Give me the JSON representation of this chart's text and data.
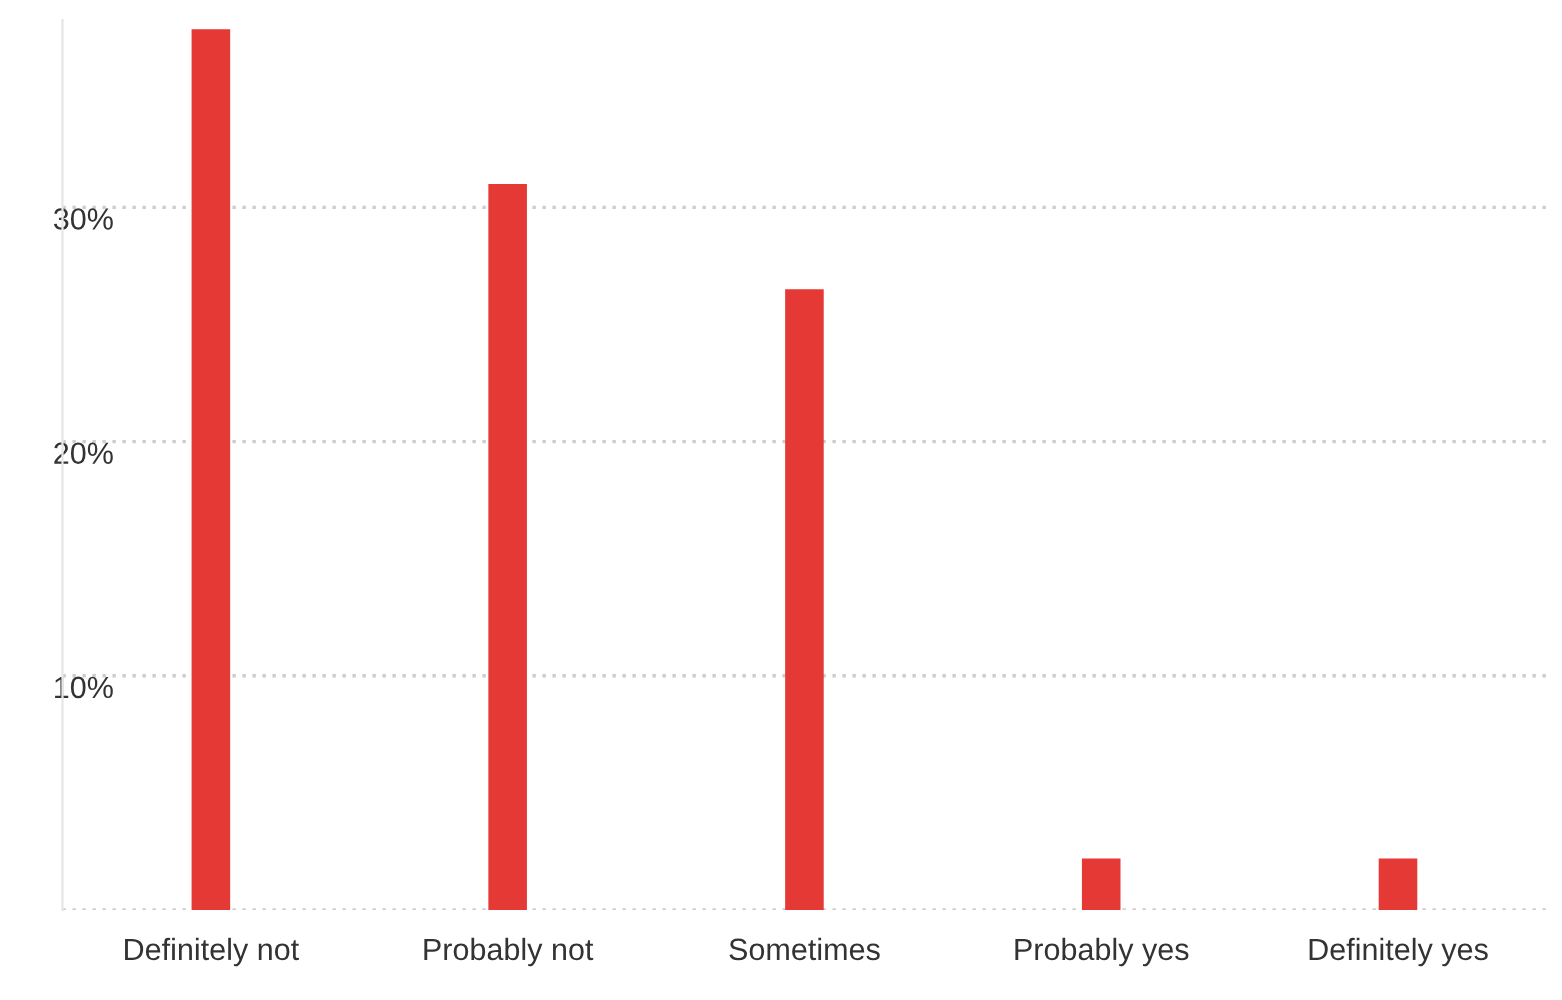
{
  "chart_data": {
    "type": "bar",
    "categories": [
      "Definitely not",
      "Probably not",
      "Sometimes",
      "Probably yes",
      "Definitely yes"
    ],
    "values": [
      37.6,
      31.0,
      26.5,
      2.2,
      2.2
    ],
    "color": "#e53935",
    "ylim": [
      0,
      38
    ],
    "yticks": [
      {
        "value": 0,
        "label": null
      },
      {
        "value": 10,
        "label": "10%"
      },
      {
        "value": 20,
        "label": "20%"
      },
      {
        "value": 30,
        "label": "30%"
      }
    ],
    "grid": "y"
  }
}
